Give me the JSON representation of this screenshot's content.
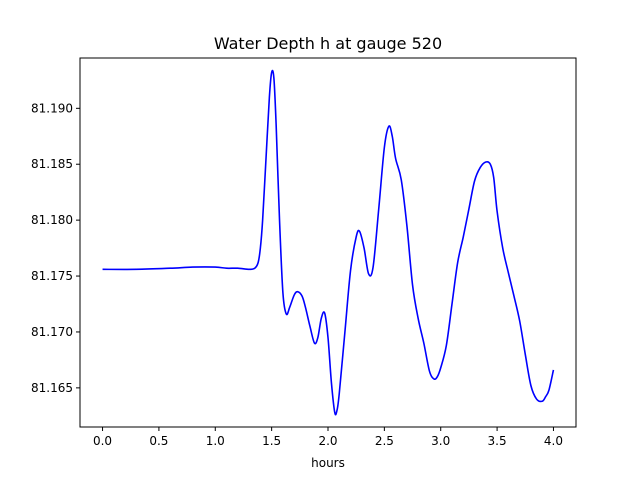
{
  "chart_data": {
    "type": "line",
    "title": "Water Depth h at gauge 520",
    "xlabel": "hours",
    "ylabel": "",
    "xlim": [
      -0.2,
      4.2
    ],
    "ylim": [
      81.1615,
      81.1945
    ],
    "grid": false,
    "xticks": [
      0.0,
      0.5,
      1.0,
      1.5,
      2.0,
      2.5,
      3.0,
      3.5,
      4.0
    ],
    "xtick_labels": [
      "0.0",
      "0.5",
      "1.0",
      "1.5",
      "2.0",
      "2.5",
      "3.0",
      "3.5",
      "4.0"
    ],
    "yticks": [
      81.165,
      81.17,
      81.175,
      81.18,
      81.185,
      81.19
    ],
    "ytick_labels": [
      "81.165",
      "81.170",
      "81.175",
      "81.180",
      "81.185",
      "81.190"
    ],
    "series": [
      {
        "color": "#0000ff",
        "x": [
          0.0,
          0.3,
          0.6,
          0.8,
          1.0,
          1.1,
          1.2,
          1.3,
          1.35,
          1.38,
          1.4,
          1.42,
          1.45,
          1.48,
          1.5,
          1.52,
          1.54,
          1.57,
          1.6,
          1.63,
          1.66,
          1.7,
          1.73,
          1.77,
          1.8,
          1.84,
          1.88,
          1.91,
          1.94,
          1.97,
          2.0,
          2.03,
          2.06,
          2.08,
          2.1,
          2.15,
          2.2,
          2.25,
          2.28,
          2.32,
          2.36,
          2.4,
          2.45,
          2.5,
          2.54,
          2.57,
          2.6,
          2.65,
          2.7,
          2.75,
          2.8,
          2.85,
          2.9,
          2.94,
          2.97,
          3.0,
          3.05,
          3.1,
          3.15,
          3.2,
          3.25,
          3.3,
          3.35,
          3.4,
          3.44,
          3.47,
          3.5,
          3.55,
          3.6,
          3.65,
          3.7,
          3.75,
          3.8,
          3.85,
          3.9,
          3.93,
          3.96,
          4.0
        ],
        "y": [
          81.1756,
          81.1756,
          81.1757,
          81.1758,
          81.1758,
          81.1757,
          81.1757,
          81.1756,
          81.1757,
          81.1762,
          81.1775,
          81.18,
          81.1855,
          81.191,
          81.1932,
          81.1927,
          81.1885,
          81.18,
          81.1735,
          81.1716,
          81.1722,
          81.1733,
          81.1736,
          81.1732,
          81.1722,
          81.1705,
          81.169,
          81.1695,
          81.1712,
          81.1717,
          81.1695,
          81.1655,
          81.1628,
          81.163,
          81.1645,
          81.17,
          81.1755,
          81.1785,
          81.179,
          81.1775,
          81.1752,
          81.1758,
          81.181,
          81.1865,
          81.1884,
          81.1875,
          81.1855,
          81.1836,
          81.1795,
          81.1742,
          81.1712,
          81.169,
          81.1665,
          81.1658,
          81.166,
          81.1668,
          81.1688,
          81.1725,
          81.1762,
          81.1785,
          81.181,
          81.1835,
          81.1847,
          81.1852,
          81.185,
          81.1838,
          81.1808,
          81.1775,
          81.1753,
          81.1732,
          81.171,
          81.168,
          81.1652,
          81.164,
          81.1638,
          81.1642,
          81.1648,
          81.1666
        ]
      }
    ]
  }
}
